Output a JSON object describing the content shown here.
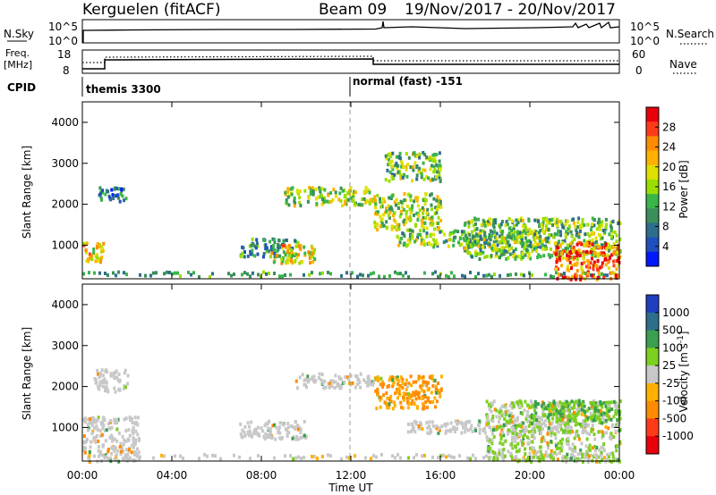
{
  "header": {
    "station": "Kerguelen (fitACF)",
    "beam": "Beam 09",
    "dates": "19/Nov/2017 - 20/Nov/2017"
  },
  "strip_nsky": {
    "label": "N.Sky",
    "left_ticks": [
      "10^5",
      "10^0"
    ],
    "right_ticks": [
      "10^5",
      "10^0"
    ],
    "right_label": "N.Search"
  },
  "strip_freq": {
    "label_line1": "Freq.",
    "label_line2": "[MHz]",
    "left_ticks": [
      "18",
      "8"
    ],
    "right_ticks": [
      "60",
      "0"
    ],
    "right_label": "Nave"
  },
  "cpid": {
    "label": "CPID",
    "mode1": "themis 3300",
    "mode2": "normal (fast) -151"
  },
  "axes": {
    "ylabel": "Slant Range [km]",
    "xlabel": "Time UT",
    "y_ticks": [
      "4000",
      "3000",
      "2000",
      "1000"
    ],
    "x_ticks": [
      "00:00",
      "04:00",
      "08:00",
      "12:00",
      "16:00",
      "20:00",
      "00:00"
    ]
  },
  "colorbars": {
    "power": {
      "label": "Power [dB]",
      "ticks": [
        "28",
        "24",
        "20",
        "16",
        "12",
        "8",
        "4"
      ],
      "colors": [
        "#e8000b",
        "#ff3a1a",
        "#ff8c00",
        "#ffb000",
        "#dfe000",
        "#9ade00",
        "#39b54a",
        "#3a8f5a",
        "#2d6e8c",
        "#1f4fbf",
        "#0018ff"
      ]
    },
    "velocity": {
      "label": "Velocity [m s^-1]",
      "ticks": [
        "1000",
        "500",
        "100",
        "25",
        "-25",
        "-100",
        "-500",
        "-1000"
      ],
      "colors": [
        "#1f3fc0",
        "#2d6e8c",
        "#3a9f4e",
        "#7dd020",
        "#c8c8c8",
        "#ffb000",
        "#ff8c00",
        "#ff3a1a",
        "#e8000b"
      ]
    }
  },
  "chart_data": {
    "type": "heatmap",
    "x_range_hours": [
      0,
      24
    ],
    "y_range_km": [
      180,
      4500
    ],
    "panels": [
      {
        "name": "power",
        "unit": "dB",
        "scale": [
          0,
          32
        ],
        "regions": [
          {
            "t": [
              0.0,
              0.9
            ],
            "r": [
              550,
              1100
            ],
            "level": 20
          },
          {
            "t": [
              0.7,
              2.0
            ],
            "r": [
              2100,
              2450
            ],
            "level": 8
          },
          {
            "t": [
              7.0,
              9.6
            ],
            "r": [
              750,
              1200
            ],
            "level": 10
          },
          {
            "t": [
              8.4,
              10.4
            ],
            "r": [
              600,
              1050
            ],
            "level": 20
          },
          {
            "t": [
              9.0,
              13.0
            ],
            "r": [
              2000,
              2450
            ],
            "level": 16
          },
          {
            "t": [
              13.0,
              16.0
            ],
            "r": [
              1400,
              2300
            ],
            "level": 16
          },
          {
            "t": [
              13.5,
              16.0
            ],
            "r": [
              2600,
              3300
            ],
            "level": 14
          },
          {
            "t": [
              14.0,
              20.5
            ],
            "r": [
              1000,
              1400
            ],
            "level": 14
          },
          {
            "t": [
              17.0,
              24.0
            ],
            "r": [
              700,
              1700
            ],
            "level": 14
          },
          {
            "t": [
              21.0,
              24.0
            ],
            "r": [
              200,
              1100
            ],
            "level": 26
          }
        ]
      },
      {
        "name": "velocity",
        "unit": "m s^-1",
        "scale": [
          -1000,
          1000
        ],
        "regions": [
          {
            "t": [
              0.0,
              2.5
            ],
            "r": [
              200,
              1300
            ],
            "level": 0
          },
          {
            "t": [
              0.5,
              2.0
            ],
            "r": [
              1900,
              2450
            ],
            "level": 0
          },
          {
            "t": [
              7.0,
              10.0
            ],
            "r": [
              750,
              1200
            ],
            "level": 0
          },
          {
            "t": [
              9.5,
              13.0
            ],
            "r": [
              2000,
              2350
            ],
            "level": 0
          },
          {
            "t": [
              13.0,
              16.0
            ],
            "r": [
              1500,
              2300
            ],
            "level": -100
          },
          {
            "t": [
              14.5,
              22.5
            ],
            "r": [
              900,
              1200
            ],
            "level": 0
          },
          {
            "t": [
              18.0,
              24.0
            ],
            "r": [
              200,
              1700
            ],
            "level": 25
          },
          {
            "t": [
              20.0,
              24.0
            ],
            "r": [
              1200,
              1700
            ],
            "level": 100
          }
        ]
      }
    ]
  }
}
